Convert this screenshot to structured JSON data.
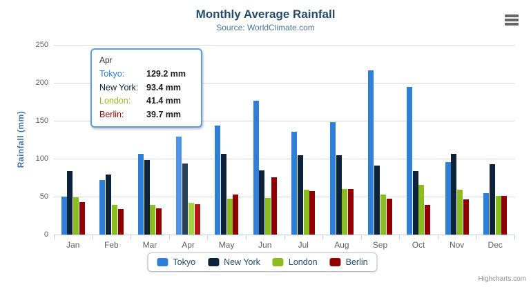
{
  "header": {
    "title": "Monthly Average Rainfall",
    "subtitle": "Source: WorldClimate.com"
  },
  "credits": "Highcharts.com",
  "chart_data": {
    "type": "bar",
    "title": "Monthly Average Rainfall",
    "subtitle": "Source: WorldClimate.com",
    "categories": [
      "Jan",
      "Feb",
      "Mar",
      "Apr",
      "May",
      "Jun",
      "Jul",
      "Aug",
      "Sep",
      "Oct",
      "Nov",
      "Dec"
    ],
    "series": [
      {
        "name": "Tokyo",
        "color": "#2f7ed8",
        "hover_color": "#4f94ea",
        "values": [
          49.9,
          71.5,
          106.4,
          129.2,
          144.0,
          176.0,
          135.6,
          148.5,
          216.4,
          194.1,
          95.6,
          54.4
        ]
      },
      {
        "name": "New York",
        "color": "#0d233a",
        "hover_color": "#274258",
        "values": [
          83.6,
          78.8,
          98.5,
          93.4,
          106.0,
          84.5,
          105.0,
          104.3,
          91.2,
          83.5,
          106.6,
          92.3
        ]
      },
      {
        "name": "London",
        "color": "#8bbc21",
        "hover_color": "#a2d441",
        "values": [
          48.9,
          38.8,
          39.3,
          41.4,
          47.0,
          48.3,
          59.0,
          59.6,
          52.4,
          65.2,
          59.3,
          51.2
        ]
      },
      {
        "name": "Berlin",
        "color": "#910000",
        "hover_color": "#ad1a17",
        "values": [
          42.4,
          33.2,
          34.5,
          39.7,
          52.6,
          75.5,
          57.4,
          60.4,
          47.6,
          39.1,
          46.8,
          51.1
        ]
      }
    ],
    "xlabel": "",
    "ylabel": "Rainfall (mm)",
    "ylim": [
      0,
      250
    ],
    "yticks": [
      0,
      50,
      100,
      150,
      200,
      250
    ],
    "grid": true,
    "legend_position": "bottom",
    "hovered_category": "Apr",
    "value_suffix": " mm"
  },
  "tooltip": {
    "header": "Apr",
    "rows": [
      {
        "series": "Tokyo",
        "value": "129.2 mm"
      },
      {
        "series": "New York",
        "value": "93.4 mm"
      },
      {
        "series": "London",
        "value": "41.4 mm"
      },
      {
        "series": "Berlin",
        "value": "39.7 mm"
      }
    ]
  }
}
